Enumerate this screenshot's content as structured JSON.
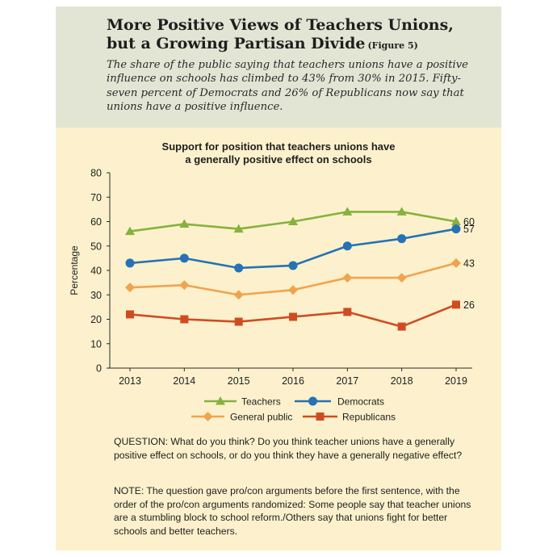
{
  "header": {
    "title_line1": "More Positive Views of Teachers Unions,",
    "title_line2": "but a Growing Partisan Divide",
    "figure_ref": "(Figure 5)",
    "subtitle": "The share of the public saying that teachers unions have a positive influence on schools has climbed to 43% from 30% in 2015. Fifty-seven percent of Democrats and 26% of Republicans now say that unions have a positive influence."
  },
  "chart_data": {
    "type": "line",
    "title_lines": [
      "Support for position that teachers unions have",
      "a generally positive effect on schools"
    ],
    "ylabel": "Percentage",
    "xlabel": "",
    "x": [
      "2013",
      "2014",
      "2015",
      "2016",
      "2017",
      "2018",
      "2019"
    ],
    "ylim": [
      0,
      80
    ],
    "yticks": [
      0,
      10,
      20,
      30,
      40,
      50,
      60,
      70,
      80
    ],
    "grid": false,
    "legend": "bottom",
    "series": [
      {
        "name": "Teachers",
        "values": [
          56,
          59,
          57,
          60,
          64,
          64,
          60
        ],
        "color": "#86b23e",
        "marker": "triangle",
        "end_label": "60"
      },
      {
        "name": "Democrats",
        "values": [
          43,
          45,
          41,
          42,
          50,
          53,
          57
        ],
        "color": "#2572b6",
        "marker": "circle",
        "end_label": "57"
      },
      {
        "name": "General public",
        "values": [
          33,
          34,
          30,
          32,
          37,
          37,
          43
        ],
        "color": "#f0a44f",
        "marker": "diamond",
        "end_label": "43"
      },
      {
        "name": "Republicans",
        "values": [
          22,
          20,
          19,
          21,
          23,
          17,
          26
        ],
        "color": "#cf4c22",
        "marker": "square",
        "end_label": "26"
      }
    ]
  },
  "notes": {
    "question": "QUESTION: What do you think? Do you think teacher unions have a generally positive effect on schools, or do you think they have a generally negative effect?",
    "note": "NOTE: The question gave pro/con arguments before the first sentence, with the order of the pro/con arguments randomized: Some people say that teacher unions are a stumbling block to school reform./Others say that unions fight for better schools and better teachers."
  }
}
